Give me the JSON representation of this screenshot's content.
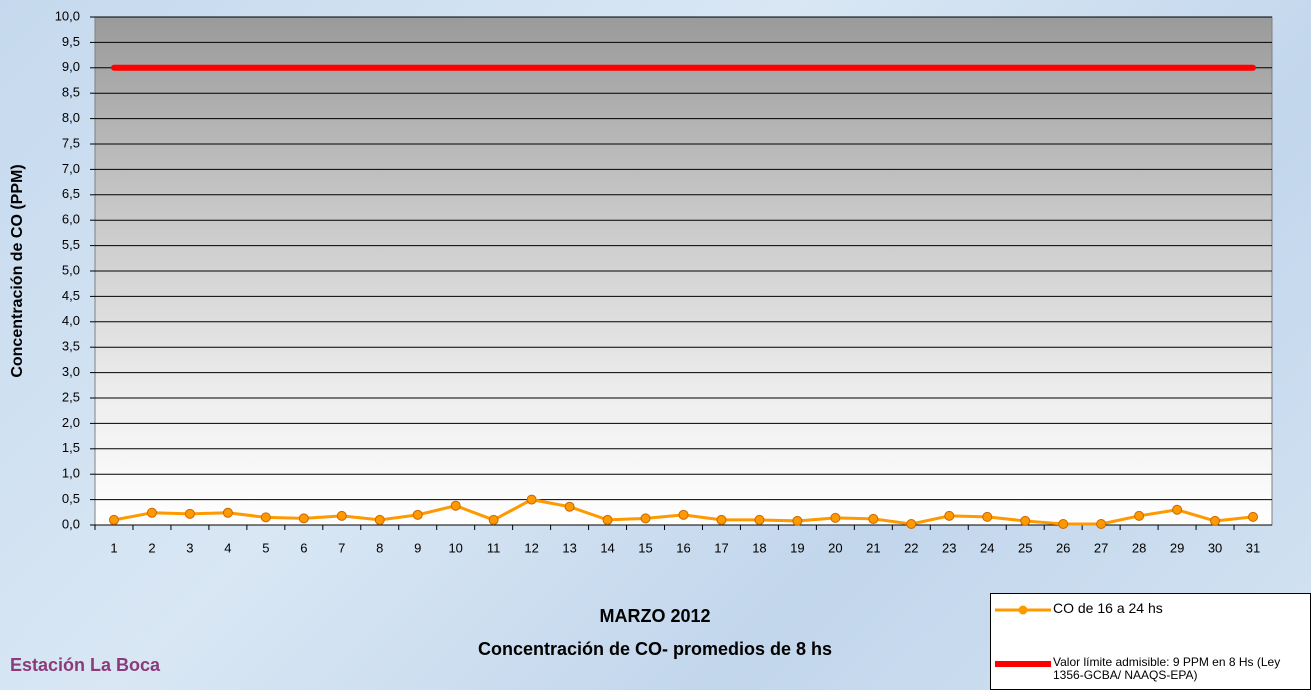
{
  "chart_data": {
    "type": "line",
    "title": "MARZO 2012",
    "subtitle": "Concentración de CO- promedios de 8 hs",
    "y_label": "Concentración de CO (PPM)",
    "station": "Estación La Boca",
    "categories": [
      "1",
      "2",
      "3",
      "4",
      "5",
      "6",
      "7",
      "8",
      "9",
      "10",
      "11",
      "12",
      "13",
      "14",
      "15",
      "16",
      "17",
      "18",
      "19",
      "20",
      "21",
      "22",
      "23",
      "24",
      "25",
      "26",
      "27",
      "28",
      "29",
      "30",
      "31"
    ],
    "series": [
      {
        "name": "CO de 16 a 24 hs",
        "color": "#ff9900",
        "marker": "circle",
        "values": [
          0.1,
          0.24,
          0.22,
          0.24,
          0.15,
          0.13,
          0.18,
          0.1,
          0.2,
          0.38,
          0.1,
          0.5,
          0.36,
          0.1,
          0.13,
          0.2,
          0.1,
          0.1,
          0.08,
          0.14,
          0.12,
          0.02,
          0.18,
          0.16,
          0.08,
          0.02,
          0.02,
          0.18,
          0.3,
          0.08,
          0.16
        ]
      },
      {
        "name": "Valor límite admisible: 9 PPM en 8 Hs (Ley 1356-GCBA/ NAAQS-EPA)",
        "color": "#ff0000",
        "values": [
          9,
          9,
          9,
          9,
          9,
          9,
          9,
          9,
          9,
          9,
          9,
          9,
          9,
          9,
          9,
          9,
          9,
          9,
          9,
          9,
          9,
          9,
          9,
          9,
          9,
          9,
          9,
          9,
          9,
          9,
          9
        ]
      }
    ],
    "ylim": [
      0,
      10
    ],
    "yticks": [
      {
        "value": 0,
        "label": "0,0"
      },
      {
        "value": 0.5,
        "label": "0,5"
      },
      {
        "value": 1,
        "label": "1,0"
      },
      {
        "value": 1.5,
        "label": "1,5"
      },
      {
        "value": 2,
        "label": "2,0"
      },
      {
        "value": 2.5,
        "label": "2,5"
      },
      {
        "value": 3,
        "label": "3,0"
      },
      {
        "value": 3.5,
        "label": "3,5"
      },
      {
        "value": 4,
        "label": "4,0"
      },
      {
        "value": 4.5,
        "label": "4,5"
      },
      {
        "value": 5,
        "label": "5,0"
      },
      {
        "value": 5.5,
        "label": "5,5"
      },
      {
        "value": 6,
        "label": "6,0"
      },
      {
        "value": 6.5,
        "label": "6,5"
      },
      {
        "value": 7,
        "label": "7,0"
      },
      {
        "value": 7.5,
        "label": "7,5"
      },
      {
        "value": 8,
        "label": "8,0"
      },
      {
        "value": 8.5,
        "label": "8,5"
      },
      {
        "value": 9,
        "label": "9,0"
      },
      {
        "value": 9.5,
        "label": "9,5"
      },
      {
        "value": 10,
        "label": "10,0"
      }
    ],
    "grid": true
  }
}
